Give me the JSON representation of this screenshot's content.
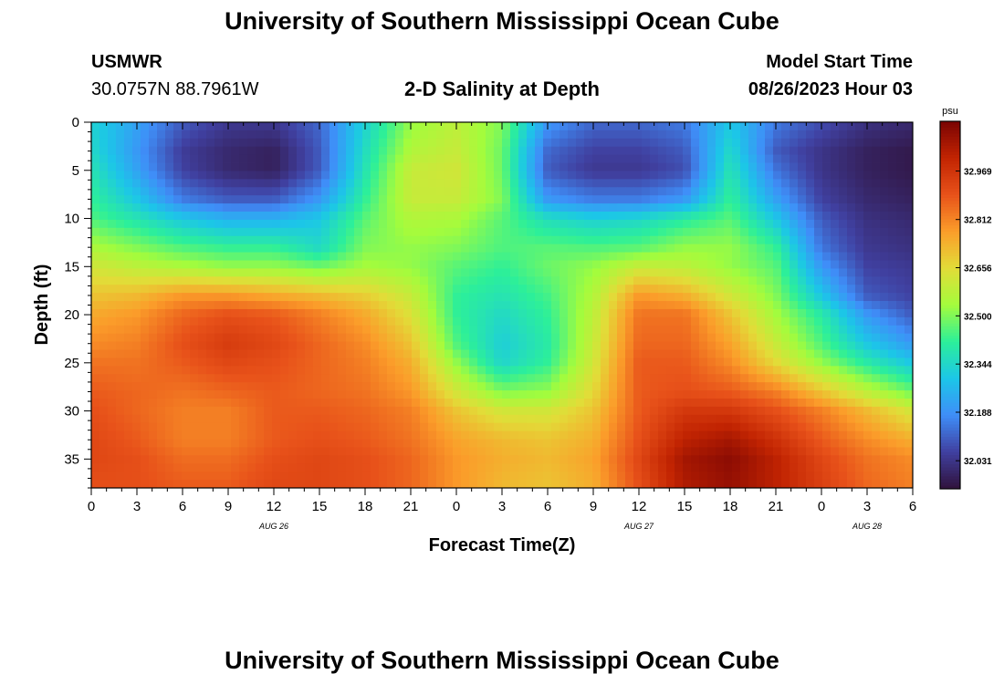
{
  "page": {
    "title": "University of Southern Mississippi Ocean Cube",
    "bottom_title": "University of Southern Mississippi Ocean Cube",
    "station": "USMWR",
    "coordinates": "30.0757N  88.7961W",
    "model_label": "Model Start Time",
    "model_time": "08/26/2023 Hour 03"
  },
  "chart_data": {
    "type": "heatmap",
    "title": "2-D Salinity at Depth",
    "xlabel": "Forecast Time(Z)",
    "ylabel": "Depth (ft)",
    "x_ticks": [
      "0",
      "3",
      "6",
      "9",
      "12",
      "15",
      "18",
      "21",
      "0",
      "3",
      "6",
      "9",
      "12",
      "15",
      "18",
      "21",
      "0",
      "3",
      "6"
    ],
    "x_range_hours": [
      0,
      54
    ],
    "date_labels": [
      {
        "label": "AUG 26",
        "hour": 12
      },
      {
        "label": "AUG 27",
        "hour": 36
      },
      {
        "label": "AUG 28",
        "hour": 51
      }
    ],
    "y_ticks": [
      "0",
      "5",
      "10",
      "15",
      "20",
      "25",
      "30",
      "35"
    ],
    "y_range_ft": [
      0,
      38
    ],
    "y_inverted": true,
    "colorbar": {
      "unit": "psu",
      "ticks": [
        "32.969",
        "32.812",
        "32.656",
        "32.500",
        "32.344",
        "32.188",
        "32.031"
      ],
      "range": [
        31.94,
        33.13
      ]
    },
    "colormap": [
      "#30123b",
      "#4040a0",
      "#3f8ef8",
      "#1cc6e8",
      "#2cef9a",
      "#a4fc3c",
      "#e2dc38",
      "#fb9d2a",
      "#e8521a",
      "#c22402",
      "#7a0403"
    ],
    "salinity_grid": {
      "depths_ft": [
        0,
        3,
        5,
        8,
        10,
        13,
        15,
        18,
        20,
        23,
        25,
        28,
        30,
        33,
        35,
        38
      ],
      "hours": [
        0,
        3,
        6,
        9,
        12,
        15,
        18,
        21,
        24,
        27,
        30,
        33,
        36,
        39,
        42,
        45,
        48,
        51,
        54
      ],
      "values": [
        [
          32.33,
          32.22,
          32.1,
          32.04,
          32.04,
          32.12,
          32.33,
          32.52,
          32.58,
          32.5,
          32.2,
          32.12,
          32.12,
          32.15,
          32.3,
          32.15,
          32.08,
          32.02,
          32.0
        ],
        [
          32.35,
          32.2,
          32.05,
          32.0,
          31.98,
          32.1,
          32.36,
          32.56,
          32.6,
          32.48,
          32.12,
          32.06,
          32.06,
          32.1,
          32.35,
          32.1,
          32.03,
          31.98,
          31.96
        ],
        [
          32.38,
          32.22,
          32.06,
          32.0,
          31.98,
          32.1,
          32.38,
          32.6,
          32.62,
          32.48,
          32.1,
          32.04,
          32.04,
          32.08,
          32.38,
          32.14,
          32.03,
          31.98,
          31.96
        ],
        [
          32.42,
          32.3,
          32.15,
          32.1,
          32.1,
          32.2,
          32.42,
          32.6,
          32.6,
          32.5,
          32.2,
          32.15,
          32.15,
          32.2,
          32.42,
          32.22,
          32.06,
          32.0,
          31.98
        ],
        [
          32.45,
          32.38,
          32.3,
          32.25,
          32.25,
          32.3,
          32.46,
          32.56,
          32.55,
          32.46,
          32.36,
          32.32,
          32.34,
          32.4,
          32.46,
          32.3,
          32.1,
          32.02,
          32.0
        ],
        [
          32.55,
          32.5,
          32.45,
          32.42,
          32.42,
          32.35,
          32.5,
          32.52,
          32.5,
          32.45,
          32.46,
          32.45,
          32.46,
          32.52,
          32.52,
          32.42,
          32.14,
          32.04,
          32.02
        ],
        [
          32.62,
          32.58,
          32.55,
          32.52,
          32.52,
          32.48,
          32.54,
          32.52,
          32.46,
          32.42,
          32.48,
          32.52,
          32.6,
          32.58,
          32.52,
          32.46,
          32.2,
          32.06,
          32.04
        ],
        [
          32.7,
          32.72,
          32.78,
          32.78,
          32.75,
          32.72,
          32.68,
          32.6,
          32.42,
          32.38,
          32.44,
          32.56,
          32.78,
          32.74,
          32.62,
          32.5,
          32.3,
          32.1,
          32.06
        ],
        [
          32.75,
          32.78,
          32.86,
          32.9,
          32.88,
          32.82,
          32.75,
          32.64,
          32.42,
          32.35,
          32.42,
          32.58,
          32.84,
          32.84,
          32.7,
          32.54,
          32.4,
          32.2,
          32.1
        ],
        [
          32.8,
          32.82,
          32.9,
          32.95,
          32.92,
          32.86,
          32.8,
          32.7,
          32.45,
          32.32,
          32.4,
          32.6,
          32.86,
          32.86,
          32.76,
          32.6,
          32.45,
          32.3,
          32.2
        ],
        [
          32.84,
          32.84,
          32.88,
          32.92,
          32.9,
          32.86,
          32.82,
          32.74,
          32.52,
          32.34,
          32.42,
          32.62,
          32.88,
          32.88,
          32.8,
          32.66,
          32.52,
          32.4,
          32.3
        ],
        [
          32.88,
          32.86,
          32.84,
          32.86,
          32.88,
          32.86,
          32.84,
          32.78,
          32.62,
          32.5,
          32.52,
          32.66,
          32.88,
          32.9,
          32.88,
          32.82,
          32.7,
          32.58,
          32.48
        ],
        [
          32.9,
          32.86,
          32.82,
          32.82,
          32.88,
          32.88,
          32.86,
          32.82,
          32.7,
          32.62,
          32.62,
          32.7,
          32.88,
          32.96,
          32.96,
          32.9,
          32.82,
          32.72,
          32.62
        ],
        [
          32.92,
          32.88,
          32.82,
          32.82,
          32.88,
          32.9,
          32.88,
          32.84,
          32.76,
          32.72,
          32.7,
          32.74,
          32.9,
          33.02,
          33.06,
          32.98,
          32.88,
          32.8,
          32.74
        ],
        [
          32.92,
          32.9,
          32.85,
          32.85,
          32.9,
          32.92,
          32.9,
          32.86,
          32.78,
          32.74,
          32.72,
          32.76,
          32.92,
          33.06,
          33.1,
          33.02,
          32.92,
          32.84,
          32.8
        ],
        [
          32.9,
          32.9,
          32.88,
          32.88,
          32.92,
          32.92,
          32.9,
          32.86,
          32.78,
          32.72,
          32.7,
          32.74,
          32.9,
          33.04,
          33.08,
          33.02,
          32.94,
          32.86,
          32.82
        ]
      ]
    }
  }
}
